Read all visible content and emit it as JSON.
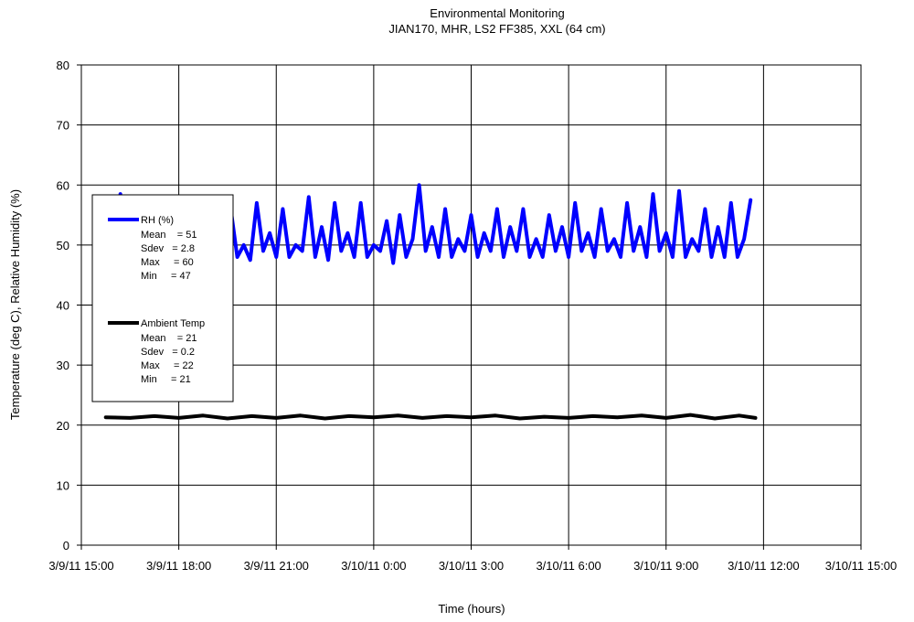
{
  "chart_data": {
    "type": "line",
    "title": "Environmental Monitoring",
    "subtitle": "JIAN170, MHR, LS2 FF385, XXL (64 cm)",
    "xlabel": "Time (hours)",
    "ylabel": "Temperature (deg C), Relative Humidity (%)",
    "xlim": [
      "3/9/11 15:00",
      "3/10/11 15:00"
    ],
    "ylim": [
      0,
      80
    ],
    "y_ticks": [
      "0",
      "10",
      "20",
      "30",
      "40",
      "50",
      "60",
      "70",
      "80"
    ],
    "x_ticks": [
      "3/9/11 15:00",
      "3/9/11 18:00",
      "3/9/11 21:00",
      "3/10/11 0:00",
      "3/10/11 3:00",
      "3/10/11 6:00",
      "3/10/11 9:00",
      "3/10/11 12:00",
      "3/10/11 15:00"
    ],
    "grid": true,
    "legend_position": "left",
    "series": [
      {
        "name": "RH (%)",
        "color": "#0000ff",
        "stats": [
          "Mean    = 51",
          "Sdev   = 2.8",
          "Max     = 60",
          "Min     = 47"
        ],
        "x": [
          "3/9/11 16:00",
          "3/9/11 16:12",
          "3/9/11 16:24",
          "3/9/11 16:36",
          "3/9/11 16:48",
          "3/9/11 17:00",
          "3/9/11 17:12",
          "3/9/11 17:24",
          "3/9/11 17:36",
          "3/9/11 17:48",
          "3/9/11 18:00",
          "3/9/11 18:12",
          "3/9/11 18:24",
          "3/9/11 18:36",
          "3/9/11 18:48",
          "3/9/11 19:00",
          "3/9/11 19:12",
          "3/9/11 19:24",
          "3/9/11 19:36",
          "3/9/11 19:48",
          "3/9/11 20:00",
          "3/9/11 20:12",
          "3/9/11 20:24",
          "3/9/11 20:36",
          "3/9/11 20:48",
          "3/9/11 21:00",
          "3/9/11 21:12",
          "3/9/11 21:24",
          "3/9/11 21:36",
          "3/9/11 21:48",
          "3/9/11 22:00",
          "3/9/11 22:12",
          "3/9/11 22:24",
          "3/9/11 22:36",
          "3/9/11 22:48",
          "3/9/11 23:00",
          "3/9/11 23:12",
          "3/9/11 23:24",
          "3/9/11 23:36",
          "3/9/11 23:48",
          "3/10/11 0:00",
          "3/10/11 0:12",
          "3/10/11 0:24",
          "3/10/11 0:36",
          "3/10/11 0:48",
          "3/10/11 1:00",
          "3/10/11 1:12",
          "3/10/11 1:24",
          "3/10/11 1:36",
          "3/10/11 1:48",
          "3/10/11 2:00",
          "3/10/11 2:12",
          "3/10/11 2:24",
          "3/10/11 2:36",
          "3/10/11 2:48",
          "3/10/11 3:00",
          "3/10/11 3:12",
          "3/10/11 3:24",
          "3/10/11 3:36",
          "3/10/11 3:48",
          "3/10/11 4:00",
          "3/10/11 4:12",
          "3/10/11 4:24",
          "3/10/11 4:36",
          "3/10/11 4:48",
          "3/10/11 5:00",
          "3/10/11 5:12",
          "3/10/11 5:24",
          "3/10/11 5:36",
          "3/10/11 5:48",
          "3/10/11 6:00",
          "3/10/11 6:12",
          "3/10/11 6:24",
          "3/10/11 6:36",
          "3/10/11 6:48",
          "3/10/11 7:00",
          "3/10/11 7:12",
          "3/10/11 7:24",
          "3/10/11 7:36",
          "3/10/11 7:48",
          "3/10/11 8:00",
          "3/10/11 8:12",
          "3/10/11 8:24",
          "3/10/11 8:36",
          "3/10/11 8:48",
          "3/10/11 9:00",
          "3/10/11 9:12",
          "3/10/11 9:24",
          "3/10/11 9:36",
          "3/10/11 9:48",
          "3/10/11 10:00",
          "3/10/11 10:12",
          "3/10/11 10:24",
          "3/10/11 10:36",
          "3/10/11 10:48",
          "3/10/11 11:00",
          "3/10/11 11:12",
          "3/10/11 11:24",
          "3/10/11 11:36"
        ],
        "values": [
          48,
          58.5,
          48,
          53,
          49,
          56,
          48,
          47.5,
          55,
          49,
          50,
          48,
          52,
          49,
          56,
          47,
          53,
          48,
          56,
          48,
          50,
          47.5,
          57,
          49,
          52,
          48,
          56,
          48,
          50,
          49,
          58,
          48,
          53,
          47.5,
          57,
          49,
          52,
          48,
          57,
          48,
          50,
          49,
          54,
          47,
          55,
          48,
          51,
          60,
          49,
          53,
          48,
          56,
          48,
          51,
          49,
          55,
          48,
          52,
          49,
          56,
          48,
          53,
          49,
          56,
          48,
          51,
          48,
          55,
          49,
          53,
          48,
          57,
          49,
          52,
          48,
          56,
          49,
          51,
          48,
          57,
          49,
          53,
          48,
          58.5,
          49,
          52,
          48,
          59,
          48,
          51,
          49,
          56,
          48,
          53,
          48,
          57,
          48,
          51,
          57.5
        ]
      },
      {
        "name": "Ambient Temp",
        "color": "#000000",
        "stats": [
          "Mean    = 21",
          "Sdev   = 0.2",
          "Max     = 22",
          "Min     = 21"
        ],
        "x": [
          "3/9/11 15:45",
          "3/9/11 16:30",
          "3/9/11 17:15",
          "3/9/11 18:00",
          "3/9/11 18:45",
          "3/9/11 19:30",
          "3/9/11 20:15",
          "3/9/11 21:00",
          "3/9/11 21:45",
          "3/9/11 22:30",
          "3/9/11 23:15",
          "3/10/11 0:00",
          "3/10/11 0:45",
          "3/10/11 1:30",
          "3/10/11 2:15",
          "3/10/11 3:00",
          "3/10/11 3:45",
          "3/10/11 4:30",
          "3/10/11 5:15",
          "3/10/11 6:00",
          "3/10/11 6:45",
          "3/10/11 7:30",
          "3/10/11 8:15",
          "3/10/11 9:00",
          "3/10/11 9:45",
          "3/10/11 10:30",
          "3/10/11 11:15",
          "3/10/11 11:45"
        ],
        "values": [
          21.3,
          21.2,
          21.5,
          21.2,
          21.6,
          21.1,
          21.5,
          21.2,
          21.6,
          21.1,
          21.5,
          21.3,
          21.6,
          21.2,
          21.5,
          21.3,
          21.6,
          21.1,
          21.4,
          21.2,
          21.5,
          21.3,
          21.6,
          21.2,
          21.7,
          21.1,
          21.6,
          21.2
        ]
      }
    ]
  }
}
